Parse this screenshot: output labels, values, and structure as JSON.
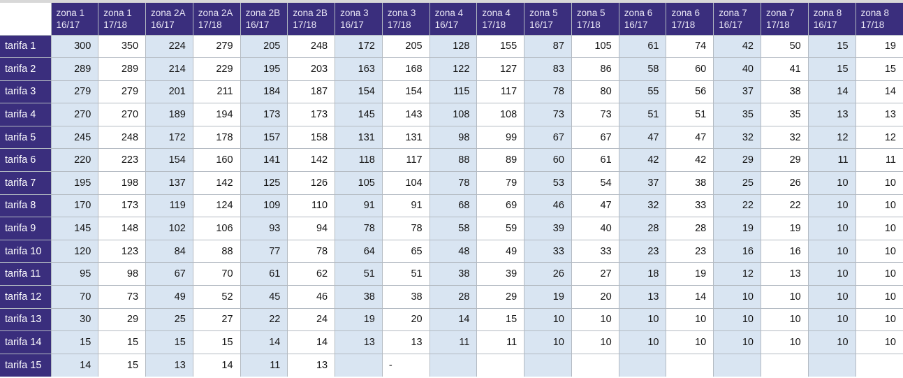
{
  "colors": {
    "header_bg": "#3a2e7d",
    "header_text": "#e9e6f5",
    "label_text": "#ffffff",
    "band_blue": "#d9e5f2",
    "band_white": "#ffffff",
    "grid": "#b3bac2",
    "top_strip": "#d8d8d8",
    "data_text": "#141414"
  },
  "chart_data": {
    "type": "table",
    "corner_label": "",
    "columns": [
      {
        "zona": "zona 1",
        "season": "16/17"
      },
      {
        "zona": "zona 1",
        "season": "17/18"
      },
      {
        "zona": "zona 2A",
        "season": "16/17"
      },
      {
        "zona": "zona 2A",
        "season": "17/18"
      },
      {
        "zona": "zona 2B",
        "season": "16/17"
      },
      {
        "zona": "zona 2B",
        "season": "17/18"
      },
      {
        "zona": "zona 3",
        "season": "16/17"
      },
      {
        "zona": "zona 3",
        "season": "17/18"
      },
      {
        "zona": "zona 4",
        "season": "16/17"
      },
      {
        "zona": "zona 4",
        "season": "17/18"
      },
      {
        "zona": "zona 5",
        "season": "16/17"
      },
      {
        "zona": "zona 5",
        "season": "17/18"
      },
      {
        "zona": "zona 6",
        "season": "16/17"
      },
      {
        "zona": "zona 6",
        "season": "17/18"
      },
      {
        "zona": "zona 7",
        "season": "16/17"
      },
      {
        "zona": "zona 7",
        "season": "17/18"
      },
      {
        "zona": "zona 8",
        "season": "16/17"
      },
      {
        "zona": "zona 8",
        "season": "17/18"
      }
    ],
    "row_labels": [
      "tarifa 1",
      "tarifa 2",
      "tarifa 3",
      "tarifa 4",
      "tarifa 5",
      "tarifa 6",
      "tarifa 7",
      "tarifa 8",
      "tarifa 9",
      "tarifa 10",
      "tarifa 11",
      "tarifa 12",
      "tarifa 13",
      "tarifa 14",
      "tarifa 15"
    ],
    "rows": [
      [
        300,
        350,
        224,
        279,
        205,
        248,
        172,
        205,
        128,
        155,
        87,
        105,
        61,
        74,
        42,
        50,
        15,
        19
      ],
      [
        289,
        289,
        214,
        229,
        195,
        203,
        163,
        168,
        122,
        127,
        83,
        86,
        58,
        60,
        40,
        41,
        15,
        15
      ],
      [
        279,
        279,
        201,
        211,
        184,
        187,
        154,
        154,
        115,
        117,
        78,
        80,
        55,
        56,
        37,
        38,
        14,
        14
      ],
      [
        270,
        270,
        189,
        194,
        173,
        173,
        145,
        143,
        108,
        108,
        73,
        73,
        51,
        51,
        35,
        35,
        13,
        13
      ],
      [
        245,
        248,
        172,
        178,
        157,
        158,
        131,
        131,
        98,
        99,
        67,
        67,
        47,
        47,
        32,
        32,
        12,
        12
      ],
      [
        220,
        223,
        154,
        160,
        141,
        142,
        118,
        117,
        88,
        89,
        60,
        61,
        42,
        42,
        29,
        29,
        11,
        11
      ],
      [
        195,
        198,
        137,
        142,
        125,
        126,
        105,
        104,
        78,
        79,
        53,
        54,
        37,
        38,
        25,
        26,
        10,
        10
      ],
      [
        170,
        173,
        119,
        124,
        109,
        110,
        91,
        91,
        68,
        69,
        46,
        47,
        32,
        33,
        22,
        22,
        10,
        10
      ],
      [
        145,
        148,
        102,
        106,
        93,
        94,
        78,
        78,
        58,
        59,
        39,
        40,
        28,
        28,
        19,
        19,
        10,
        10
      ],
      [
        120,
        123,
        84,
        88,
        77,
        78,
        64,
        65,
        48,
        49,
        33,
        33,
        23,
        23,
        16,
        16,
        10,
        10
      ],
      [
        95,
        98,
        67,
        70,
        61,
        62,
        51,
        51,
        38,
        39,
        26,
        27,
        18,
        19,
        12,
        13,
        10,
        10
      ],
      [
        70,
        73,
        49,
        52,
        45,
        46,
        38,
        38,
        28,
        29,
        19,
        20,
        13,
        14,
        10,
        10,
        10,
        10
      ],
      [
        30,
        29,
        25,
        27,
        22,
        24,
        19,
        20,
        14,
        15,
        10,
        10,
        10,
        10,
        10,
        10,
        10,
        10
      ],
      [
        15,
        15,
        15,
        15,
        14,
        14,
        13,
        13,
        11,
        11,
        10,
        10,
        10,
        10,
        10,
        10,
        10,
        10
      ],
      [
        14,
        15,
        13,
        14,
        11,
        13,
        "",
        "-",
        "",
        "",
        "",
        "",
        "",
        "",
        "",
        "",
        "",
        ""
      ]
    ]
  }
}
